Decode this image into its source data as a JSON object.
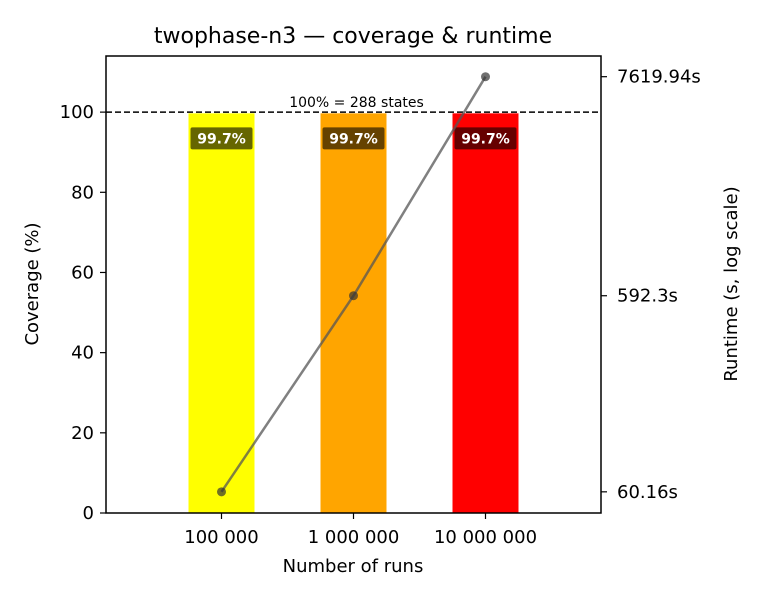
{
  "chart_data": {
    "type": "bar",
    "title": "twophase-n3 — coverage & runtime",
    "xlabel": "Number of runs",
    "ylabel": "Coverage (%)",
    "y2label": "Runtime (s, log scale)",
    "categories": [
      "100 000",
      "1 000 000",
      "10 000 000"
    ],
    "series": [
      {
        "values": [
          99.7,
          99.7,
          99.7
        ],
        "labels": [
          "99.7%",
          "99.7%",
          "99.7%"
        ],
        "colors": [
          "#ffff00",
          "#ffa500",
          "#ff0000"
        ]
      },
      {
        "type": "line",
        "axis": "right",
        "values": [
          60.16,
          592.3,
          7619.94
        ],
        "color": "#555555"
      }
    ],
    "ylim": [
      0,
      114
    ],
    "yticks": [
      0,
      20,
      40,
      60,
      80,
      100
    ],
    "y2scale": "log",
    "y2lim": [
      47,
      9700
    ],
    "y2ticks": [
      60.16,
      592.3,
      7619.94
    ],
    "y2ticklabels": [
      "60.16s",
      "592.3s",
      "7619.94s"
    ],
    "reference_line": {
      "value": 100,
      "label": "100% = 288 states",
      "style": "dashed"
    },
    "grid": false,
    "legend": "none"
  }
}
